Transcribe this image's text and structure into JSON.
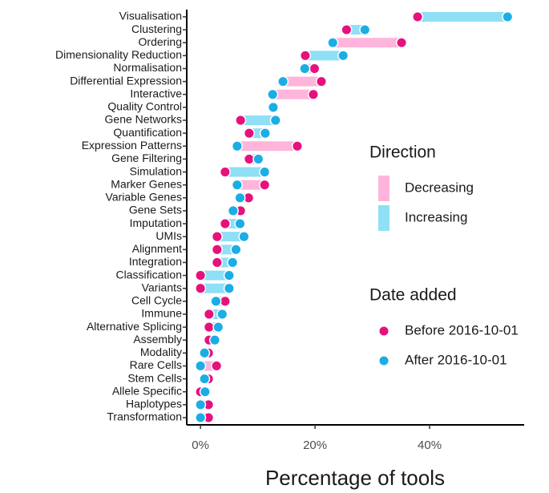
{
  "chart_data": {
    "type": "dumbbell",
    "x_label": "Percentage of tools",
    "categories": [
      "Visualisation",
      "Clustering",
      "Ordering",
      "Dimensionality Reduction",
      "Normalisation",
      "Differential Expression",
      "Interactive",
      "Quality Control",
      "Gene Networks",
      "Quantification",
      "Expression Patterns",
      "Gene Filtering",
      "Simulation",
      "Marker Genes",
      "Variable Genes",
      "Gene Sets",
      "Imputation",
      "UMIs",
      "Alignment",
      "Integration",
      "Classification",
      "Variants",
      "Cell Cycle",
      "Immune",
      "Alternative Splicing",
      "Assembly",
      "Modality",
      "Rare Cells",
      "Stem Cells",
      "Allele Specific",
      "Haplotypes",
      "Transformation"
    ],
    "series": [
      {
        "name": "Before 2016-10-01",
        "color": "#e5127d",
        "values": [
          37.9,
          25.5,
          35.1,
          18.3,
          19.9,
          21.1,
          19.7,
          12.7,
          7.0,
          8.5,
          16.9,
          8.5,
          4.3,
          11.2,
          8.4,
          7.0,
          4.3,
          2.9,
          2.9,
          2.9,
          0,
          0,
          4.3,
          1.5,
          1.5,
          1.5,
          1.4,
          2.8,
          1.4,
          0,
          1.4,
          1.4
        ]
      },
      {
        "name": "After 2016-10-01",
        "color": "#1aaee5",
        "values": [
          53.6,
          28.7,
          23.1,
          24.9,
          18.2,
          14.4,
          12.6,
          12.7,
          13.1,
          11.3,
          6.4,
          10.1,
          11.2,
          6.4,
          6.9,
          5.7,
          6.9,
          7.6,
          6.2,
          5.6,
          5.0,
          5.0,
          2.7,
          3.8,
          3.1,
          2.5,
          0.7,
          0,
          0.7,
          0.8,
          0,
          0
        ]
      }
    ],
    "legend_title": "Date added",
    "direction": {
      "title": "Direction",
      "items": [
        {
          "name": "Decreasing",
          "color": "#ffb5db"
        },
        {
          "name": "Increasing",
          "color": "#8fdff6"
        }
      ]
    },
    "xlim": [
      -2.4,
      56.5
    ],
    "xticks": [
      {
        "value": 0,
        "label": "0%"
      },
      {
        "value": 20,
        "label": "20%"
      },
      {
        "value": 40,
        "label": "40%"
      }
    ]
  }
}
